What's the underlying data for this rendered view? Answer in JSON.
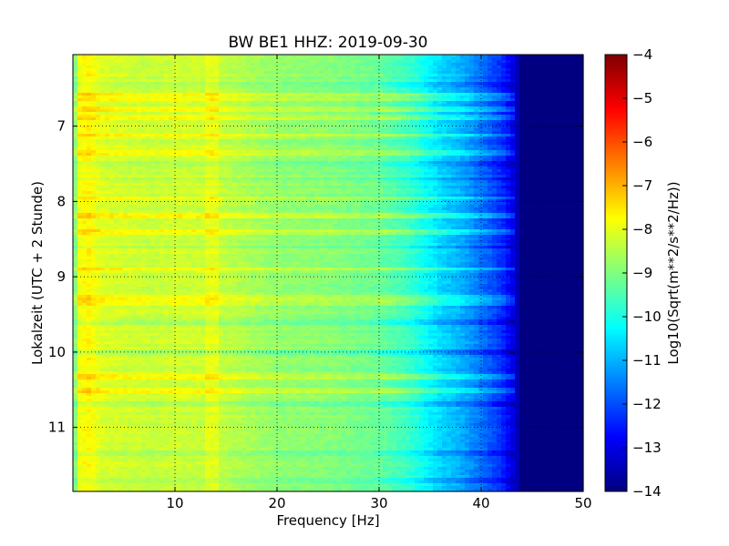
{
  "chart_data": {
    "type": "heatmap",
    "title": "BW BE1 HHZ: 2019-09-30",
    "xlabel": "Frequency [Hz]",
    "ylabel": "Lokalzeit (UTC + 2 Stunde)",
    "xlim": [
      0,
      50
    ],
    "ylim": [
      11.85,
      6.05
    ],
    "x_ticks": [
      10,
      20,
      30,
      40,
      50
    ],
    "y_ticks": [
      7,
      8,
      9,
      10,
      11
    ],
    "grid": true,
    "colormap": "jet",
    "colorbar": {
      "label": "Log10(Sqrt(m**2/s**2/Hz))",
      "range": [
        -14,
        -4
      ],
      "ticks": [
        -4,
        -5,
        -6,
        -7,
        -8,
        -9,
        -10,
        -11,
        -12,
        -13,
        -14
      ]
    },
    "profile": {
      "description_free": true,
      "freq": [
        0,
        0.7,
        1.5,
        3,
        8,
        10,
        14,
        20,
        25,
        30,
        33,
        36,
        38,
        40,
        42,
        43,
        44,
        45,
        50
      ],
      "level": [
        -9.4,
        -7.8,
        -7.7,
        -8.1,
        -8.3,
        -8.2,
        -8.3,
        -8.8,
        -8.9,
        -9.2,
        -9.7,
        -10.6,
        -11.0,
        -11.6,
        -12.3,
        -12.9,
        -14,
        -14,
        -14
      ]
    },
    "bright_bands_hours": [
      7.4,
      7.58,
      8.55,
      8.62,
      9.0,
      9.5,
      9.7,
      9.95,
      10.55,
      10.78,
      11.02,
      11.12,
      11.25,
      11.3
    ],
    "dark_bands_hours": [
      6.2,
      6.55,
      7.2,
      7.9,
      8.3,
      9.3,
      10.2,
      10.4,
      11.45
    ]
  },
  "colors": {
    "jet_stops": [
      "#00007f",
      "#0000ff",
      "#007fff",
      "#00ffff",
      "#7fff7f",
      "#ffff00",
      "#ff7f00",
      "#ff0000",
      "#7f0000"
    ]
  }
}
